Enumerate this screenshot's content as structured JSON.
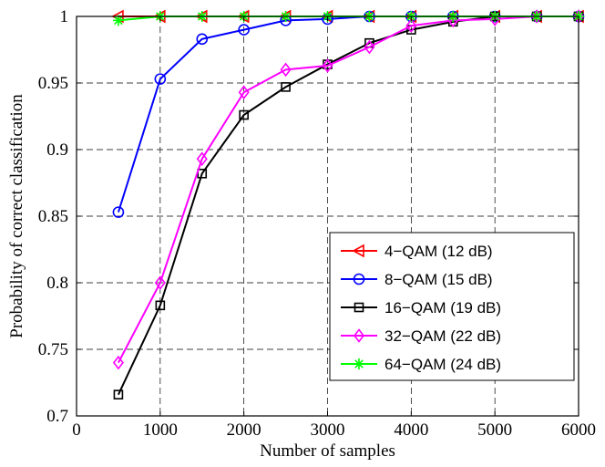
{
  "chart_data": {
    "type": "line",
    "xlabel": "Number of samples",
    "ylabel": "Probability of correct classification",
    "xlim": [
      0,
      6000
    ],
    "ylim": [
      0.7,
      1.0
    ],
    "xticks": [
      0,
      1000,
      2000,
      3000,
      4000,
      5000,
      6000
    ],
    "xtick_labels": [
      "0",
      "1000",
      "2000",
      "3000",
      "4000",
      "5000",
      "6000"
    ],
    "yticks": [
      0.7,
      0.75,
      0.8,
      0.85,
      0.9,
      0.95,
      1.0
    ],
    "ytick_labels": [
      "0.7",
      "0.75",
      "0.8",
      "0.85",
      "0.9",
      "0.95",
      "1"
    ],
    "grid": true,
    "legend_position": "bottom-right",
    "x": [
      500,
      1000,
      1500,
      2000,
      2500,
      3000,
      3500,
      4000,
      4500,
      5000,
      5500,
      6000
    ],
    "series": [
      {
        "name": "4−QAM (12 dB)",
        "color": "#ff0000",
        "marker": "triangle-left",
        "values": [
          1.0,
          1.0,
          1.0,
          1.0,
          1.0,
          1.0,
          1.0,
          1.0,
          1.0,
          1.0,
          1.0,
          1.0
        ]
      },
      {
        "name": "8−QAM (15 dB)",
        "color": "#0000ff",
        "marker": "circle",
        "values": [
          0.853,
          0.953,
          0.983,
          0.99,
          0.997,
          0.998,
          1.0,
          1.0,
          1.0,
          1.0,
          1.0,
          1.0
        ]
      },
      {
        "name": "16−QAM (19 dB)",
        "color": "#000000",
        "marker": "square",
        "values": [
          0.716,
          0.783,
          0.882,
          0.926,
          0.947,
          0.964,
          0.98,
          0.99,
          0.996,
          1.0,
          1.0,
          1.0
        ]
      },
      {
        "name": "32−QAM (22 dB)",
        "color": "#ff00ff",
        "marker": "diamond",
        "values": [
          0.74,
          0.8,
          0.893,
          0.943,
          0.96,
          0.963,
          0.977,
          0.993,
          0.997,
          0.998,
          1.0,
          1.0
        ]
      },
      {
        "name": "64−QAM (24 dB)",
        "color": "#00ff00",
        "marker": "star",
        "values": [
          0.997,
          1.0,
          1.0,
          1.0,
          1.0,
          1.0,
          1.0,
          1.0,
          1.0,
          1.0,
          1.0,
          1.0
        ]
      }
    ]
  }
}
